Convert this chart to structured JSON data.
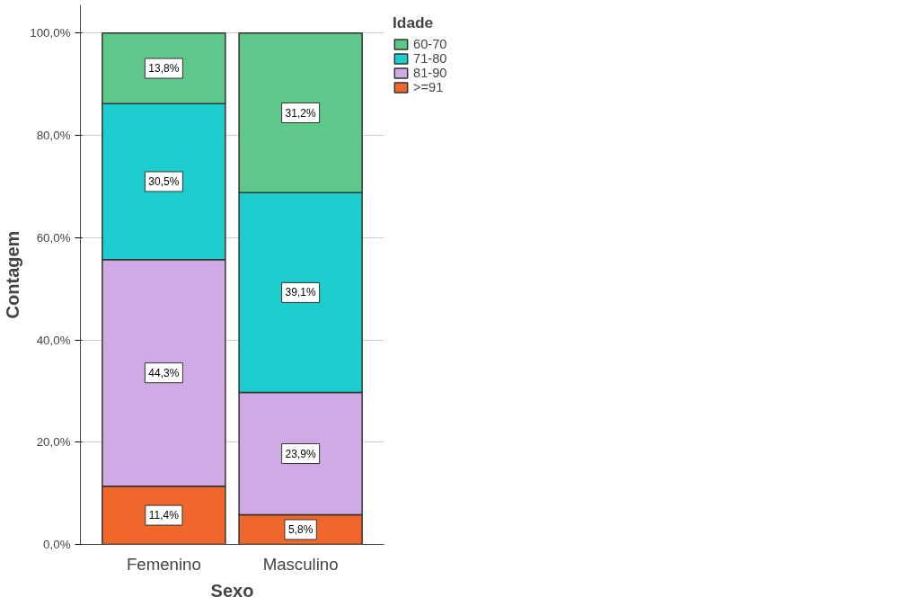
{
  "chart_data": {
    "type": "bar",
    "stacked": true,
    "xlabel": "Sexo",
    "ylabel": "Contagem",
    "legend_title": "Idade",
    "legend": "top right",
    "grid": "y",
    "categories": [
      "Femenino",
      "Masculino"
    ],
    "ylim": [
      0,
      105.5
    ],
    "yticks": [
      {
        "value": 0,
        "label": "0,0%"
      },
      {
        "value": 20,
        "label": "20,0%"
      },
      {
        "value": 40,
        "label": "40,0%"
      },
      {
        "value": 60,
        "label": "60,0%"
      },
      {
        "value": 80,
        "label": "80,0%"
      },
      {
        "value": 100,
        "label": "100,0%"
      }
    ],
    "series": [
      {
        "name": ">=91",
        "color": "#f0672b",
        "values": [
          11.4,
          5.8
        ],
        "value_labels": [
          "11,4%",
          "5,8%"
        ]
      },
      {
        "name": "81-90",
        "color": "#d0aae4",
        "values": [
          44.3,
          23.9
        ],
        "value_labels": [
          "44,3%",
          "23,9%"
        ]
      },
      {
        "name": "71-80",
        "color": "#1dcccc",
        "values": [
          30.5,
          39.1
        ],
        "value_labels": [
          "30,5%",
          "39,1%"
        ]
      },
      {
        "name": "60-70",
        "color": "#5ec88a",
        "values": [
          13.8,
          31.2
        ],
        "value_labels": [
          "13,8%",
          "31,2%"
        ]
      }
    ]
  }
}
